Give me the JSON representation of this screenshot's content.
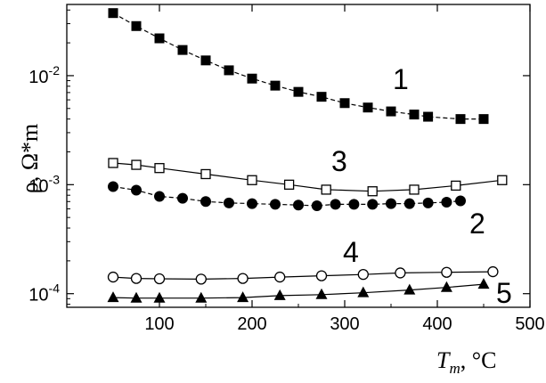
{
  "chart_data": {
    "type": "scatter",
    "x_axis": {
      "label_main": "T",
      "label_sub": "m",
      "label_rest": ", °C",
      "range": [
        0,
        500
      ],
      "ticks": [
        100,
        200,
        300,
        400,
        500
      ],
      "tick_labels": [
        "100",
        "200",
        "300",
        "400",
        "500"
      ]
    },
    "y_axis": {
      "label": "ρ, Ω*m",
      "scale": "log",
      "range": [
        7.5e-05,
        0.045
      ],
      "major_ticks": [
        0.0001,
        0.001,
        0.01
      ],
      "tick_labels": [
        {
          "base": "10",
          "exp": "-4"
        },
        {
          "base": "10",
          "exp": "-3"
        },
        {
          "base": "10",
          "exp": "-2"
        }
      ]
    },
    "grid": false,
    "series": [
      {
        "curve_label": "1",
        "marker": "square-filled",
        "line": "dashed",
        "x": [
          50,
          75,
          100,
          125,
          150,
          175,
          200,
          225,
          250,
          275,
          300,
          325,
          350,
          375,
          390,
          425,
          450
        ],
        "y": [
          0.0375,
          0.0285,
          0.022,
          0.0172,
          0.0138,
          0.0112,
          0.0094,
          0.0081,
          0.0071,
          0.0064,
          0.0056,
          0.0051,
          0.0047,
          0.0044,
          0.0042,
          0.004,
          0.004
        ]
      },
      {
        "curve_label": "3",
        "marker": "square-open",
        "line": "solid",
        "x": [
          50,
          75,
          100,
          150,
          200,
          240,
          280,
          330,
          375,
          420,
          470
        ],
        "y": [
          0.00158,
          0.00152,
          0.00142,
          0.00125,
          0.0011,
          0.001,
          0.0009,
          0.00087,
          0.0009,
          0.00098,
          0.0011
        ]
      },
      {
        "curve_label": "2",
        "marker": "circle-filled",
        "line": "dashed",
        "x": [
          50,
          75,
          100,
          125,
          150,
          175,
          200,
          225,
          250,
          270,
          290,
          310,
          330,
          350,
          370,
          390,
          410,
          425
        ],
        "y": [
          0.00096,
          0.00089,
          0.00078,
          0.00075,
          0.0007,
          0.00068,
          0.00067,
          0.00066,
          0.00065,
          0.00064,
          0.00066,
          0.00066,
          0.00066,
          0.00067,
          0.00067,
          0.00068,
          0.00069,
          0.00071
        ]
      },
      {
        "curve_label": "4",
        "marker": "circle-open",
        "line": "solid",
        "x": [
          50,
          75,
          100,
          145,
          190,
          230,
          275,
          320,
          360,
          410,
          460
        ],
        "y": [
          0.000142,
          0.000138,
          0.000137,
          0.000136,
          0.000138,
          0.000142,
          0.000146,
          0.00015,
          0.000155,
          0.000157,
          0.000159
        ]
      },
      {
        "curve_label": "5",
        "marker": "triangle-filled",
        "line": "solid",
        "x": [
          50,
          75,
          100,
          145,
          190,
          230,
          275,
          320,
          370,
          410,
          450
        ],
        "y": [
          9.2e-05,
          9.1e-05,
          9.1e-05,
          9.1e-05,
          9.2e-05,
          9.6e-05,
          9.8e-05,
          0.000102,
          0.000108,
          0.000114,
          0.000122
        ]
      }
    ]
  }
}
